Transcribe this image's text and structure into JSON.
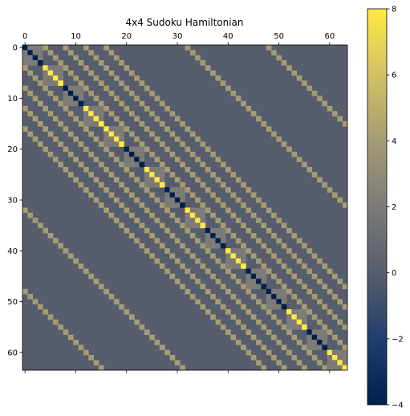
{
  "chart_data": {
    "type": "heatmap",
    "title": "4x4 Sudoku Hamiltonian",
    "rows": 64,
    "cols": 64,
    "x_ticks": [
      0,
      10,
      20,
      30,
      40,
      50,
      60
    ],
    "y_ticks": [
      0,
      10,
      20,
      30,
      40,
      50,
      60
    ],
    "x_tick_position": "top",
    "colormap": "cividis",
    "colorbar": {
      "range": [
        -4,
        8
      ],
      "ticks": [
        -4,
        -2,
        0,
        2,
        4,
        6,
        8
      ],
      "position": "right"
    },
    "background_value": 0,
    "diagonal": [
      -4,
      -4,
      -4,
      -4,
      8,
      8,
      8,
      8,
      -4,
      -4,
      -4,
      -4,
      8,
      8,
      8,
      8,
      8,
      8,
      8,
      8,
      -4,
      -4,
      -4,
      -4,
      8,
      8,
      8,
      8,
      -4,
      -4,
      -4,
      -4,
      8,
      8,
      8,
      8,
      -4,
      -4,
      -4,
      -4,
      8,
      8,
      8,
      8,
      -4,
      -4,
      -4,
      -4,
      -4,
      -4,
      -4,
      -4,
      8,
      8,
      8,
      8,
      -4,
      -4,
      -4,
      -4,
      8,
      8,
      8,
      8
    ],
    "block_coupling_value": 2,
    "block_coupling_blocks": 16,
    "block_size": 4,
    "offdiagonal_value": 4,
    "offdiagonal_offsets": [
      4,
      8,
      12,
      16,
      32,
      48
    ]
  },
  "colors": {
    "cividis_stops": [
      "#00204c",
      "#213e6f",
      "#575d6d",
      "#7c7b78",
      "#a59c74",
      "#d3c164",
      "#ffe945"
    ]
  }
}
